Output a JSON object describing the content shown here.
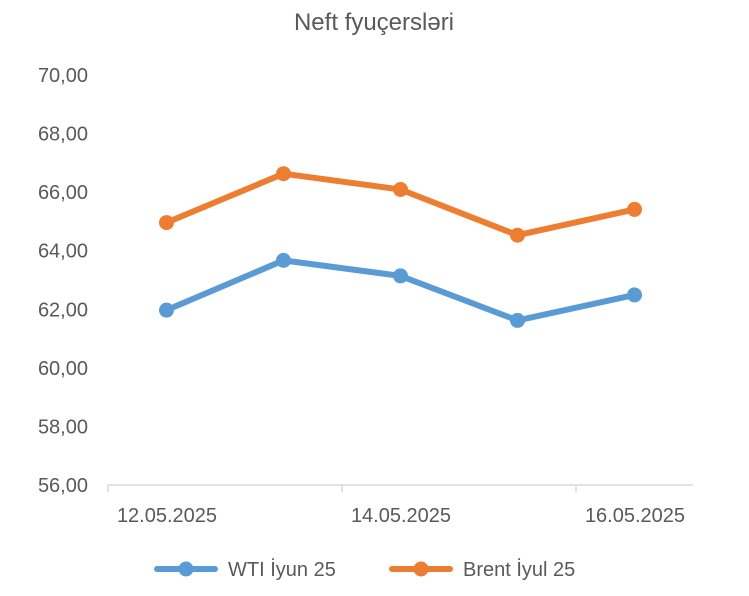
{
  "chart_data": {
    "type": "line",
    "title": "Neft fyuçersləri",
    "x": [
      "12.05.2025",
      "13.05.2025",
      "14.05.2025",
      "15.05.2025",
      "16.05.2025"
    ],
    "x_tick_labels": [
      "12.05.2025",
      "14.05.2025",
      "16.05.2025"
    ],
    "y_ticks": [
      "56,00",
      "58,00",
      "60,00",
      "62,00",
      "64,00",
      "66,00",
      "68,00",
      "70,00"
    ],
    "ylim": [
      56,
      70
    ],
    "grid": false,
    "legend_position": "bottom",
    "series": [
      {
        "name": "WTI İyun 25",
        "color": "#5B9BD5",
        "values": [
          61.97,
          63.67,
          63.14,
          61.62,
          62.49
        ]
      },
      {
        "name": "Brent İyul 25",
        "color": "#ED7D31",
        "values": [
          64.96,
          66.63,
          66.09,
          64.53,
          65.41
        ]
      }
    ]
  }
}
